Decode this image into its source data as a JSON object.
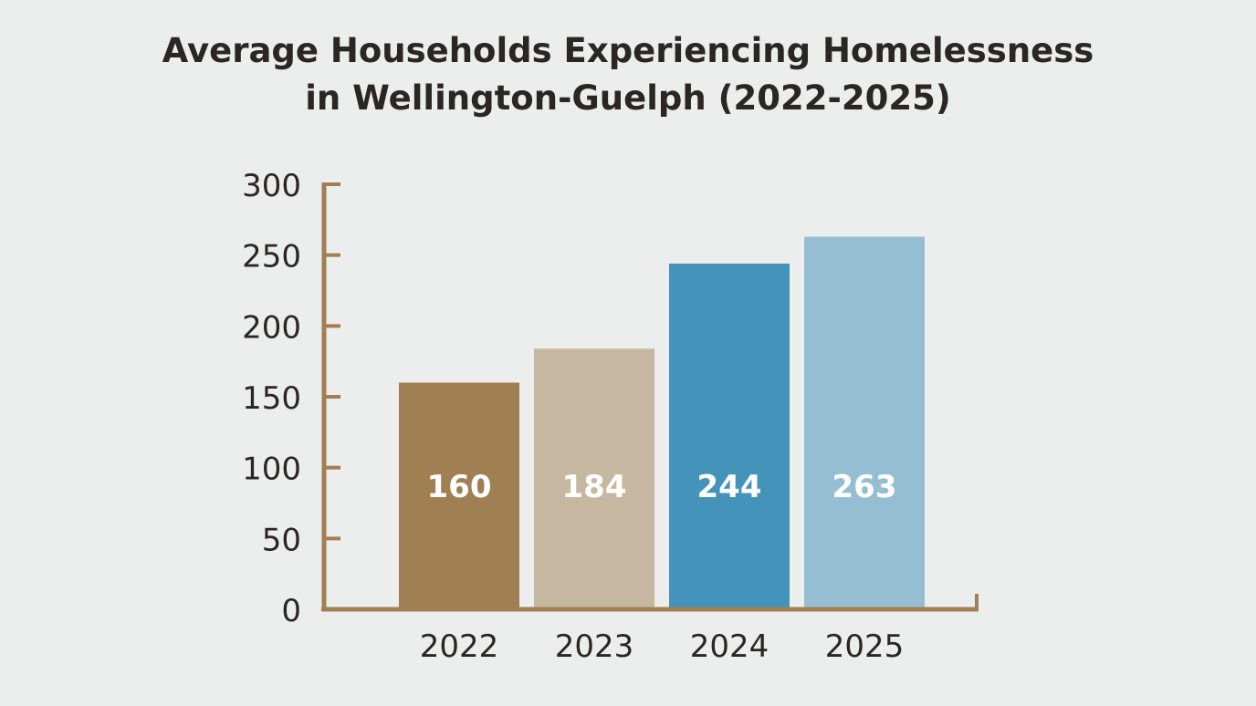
{
  "chart_data": {
    "type": "bar",
    "title_line1": "Average Households Experiencing Homelessness",
    "title_line2": "in Wellington-Guelph (2022-2025)",
    "xlabel": "",
    "ylabel": "",
    "categories": [
      "2022",
      "2023",
      "2024",
      "2025"
    ],
    "values": [
      160,
      184,
      244,
      263
    ],
    "data_labels": [
      "160",
      "184",
      "244",
      "263"
    ],
    "bar_colors": [
      "#a07f52",
      "#c6b7a1",
      "#4493bb",
      "#96bed3"
    ],
    "axis_color": "#a07f52",
    "ylim": [
      0,
      300
    ],
    "yticks": [
      0,
      50,
      100,
      150,
      200,
      250,
      300
    ],
    "ytick_labels": [
      "0",
      "50",
      "100",
      "150",
      "200",
      "250",
      "300"
    ],
    "grid": false,
    "legend": "none"
  }
}
